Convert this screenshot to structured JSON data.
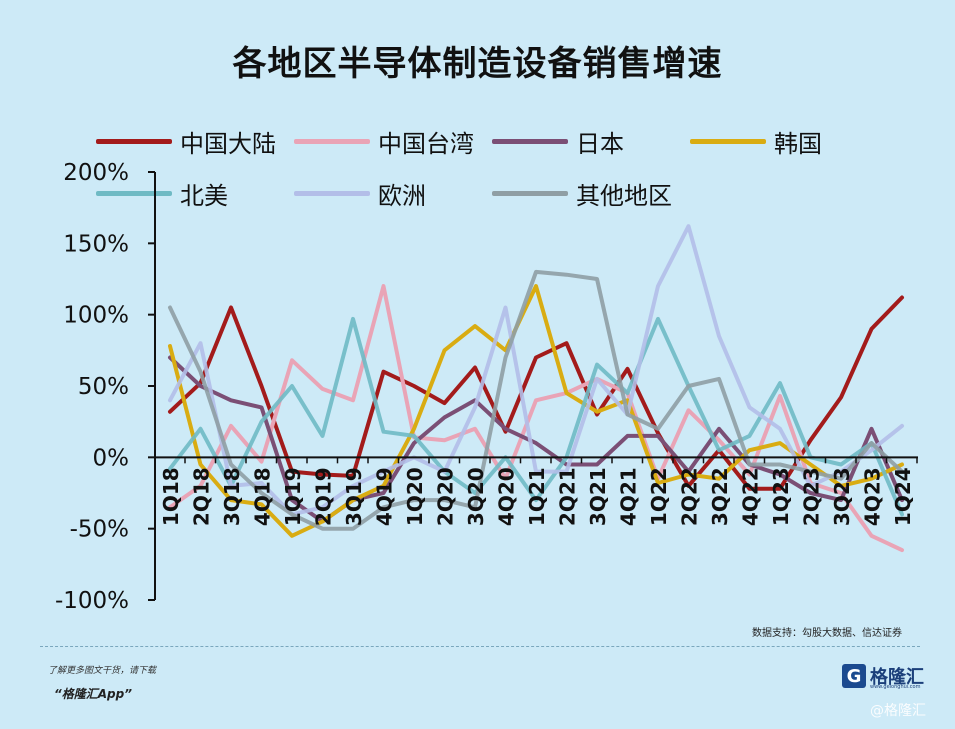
{
  "title": "各地区半导体制造设备销售增速",
  "legend": [
    {
      "name": "中国大陆",
      "color": "#a31b1b"
    },
    {
      "name": "中国台湾",
      "color": "#e9a4b6"
    },
    {
      "name": "日本",
      "color": "#7b4f75"
    },
    {
      "name": "韩国",
      "color": "#d9ac12"
    },
    {
      "name": "北美",
      "color": "#6fbac4"
    },
    {
      "name": "欧洲",
      "color": "#b3bee8"
    },
    {
      "name": "其他地区",
      "color": "#8f9ea4"
    }
  ],
  "chart_data": {
    "type": "line",
    "title": "各地区半导体制造设备销售增速",
    "x": [
      "1Q18",
      "2Q18",
      "3Q18",
      "4Q18",
      "1Q19",
      "2Q19",
      "3Q19",
      "4Q19",
      "1Q20",
      "2Q20",
      "3Q20",
      "4Q20",
      "1Q21",
      "2Q21",
      "3Q21",
      "4Q21",
      "1Q22",
      "2Q22",
      "3Q22",
      "4Q22",
      "1Q23",
      "2Q23",
      "3Q23",
      "4Q23",
      "1Q24"
    ],
    "y_ticks": [
      "-100%",
      "-50%",
      "0%",
      "50%",
      "100%",
      "150%",
      "200%"
    ],
    "ylim": [
      -100,
      200
    ],
    "grid": false,
    "series": [
      {
        "name": "中国大陆",
        "color": "#a31b1b",
        "values": [
          32,
          52,
          105,
          50,
          -10,
          -12,
          -13,
          60,
          50,
          38,
          63,
          18,
          70,
          80,
          30,
          62,
          17,
          -20,
          5,
          -22,
          -22,
          12,
          42,
          90,
          112
        ]
      },
      {
        "name": "中国台湾",
        "color": "#e9a4b6",
        "values": [
          -35,
          -20,
          22,
          -3,
          68,
          48,
          40,
          120,
          14,
          12,
          20,
          -15,
          40,
          45,
          55,
          45,
          -15,
          33,
          12,
          -12,
          43,
          -18,
          -25,
          -55,
          -65
        ]
      },
      {
        "name": "日本",
        "color": "#7b4f75",
        "values": [
          70,
          50,
          40,
          35,
          -30,
          -45,
          -30,
          -25,
          10,
          28,
          40,
          20,
          10,
          -5,
          -5,
          15,
          15,
          -10,
          20,
          -5,
          -12,
          -25,
          -30,
          20,
          -30
        ]
      },
      {
        "name": "韩国",
        "color": "#d9ac12",
        "values": [
          78,
          -5,
          -30,
          -33,
          -55,
          -45,
          -30,
          -20,
          20,
          75,
          92,
          75,
          120,
          45,
          32,
          40,
          -18,
          -12,
          -15,
          5,
          10,
          -5,
          -20,
          -15,
          -5
        ]
      },
      {
        "name": "北美",
        "color": "#6fbac4",
        "values": [
          -8,
          20,
          -20,
          25,
          50,
          15,
          97,
          18,
          15,
          -10,
          -25,
          0,
          -30,
          0,
          65,
          45,
          97,
          50,
          5,
          15,
          52,
          0,
          -5,
          10,
          -40
        ]
      },
      {
        "name": "欧洲",
        "color": "#b3bee8",
        "values": [
          40,
          80,
          -20,
          -18,
          -40,
          -35,
          -20,
          -10,
          0,
          -10,
          35,
          105,
          -10,
          -10,
          55,
          30,
          120,
          162,
          85,
          35,
          20,
          -20,
          -10,
          5,
          22
        ]
      },
      {
        "name": "其他地区",
        "color": "#8f9ea4",
        "values": [
          105,
          60,
          -5,
          -25,
          -40,
          -50,
          -50,
          -35,
          -30,
          -30,
          -35,
          70,
          130,
          128,
          125,
          30,
          20,
          50,
          55,
          -5,
          -5,
          -10,
          -15,
          10,
          -10
        ]
      }
    ]
  },
  "source": "数据支持：勾股大数据、信达证券",
  "footer": {
    "download_text": "了解更多图文干货，请下载",
    "app_name": "“格隆汇App”"
  },
  "logo": {
    "mark": "G",
    "name": "格隆汇",
    "url": "www.gelonghui.com"
  },
  "watermark": "@格隆汇"
}
